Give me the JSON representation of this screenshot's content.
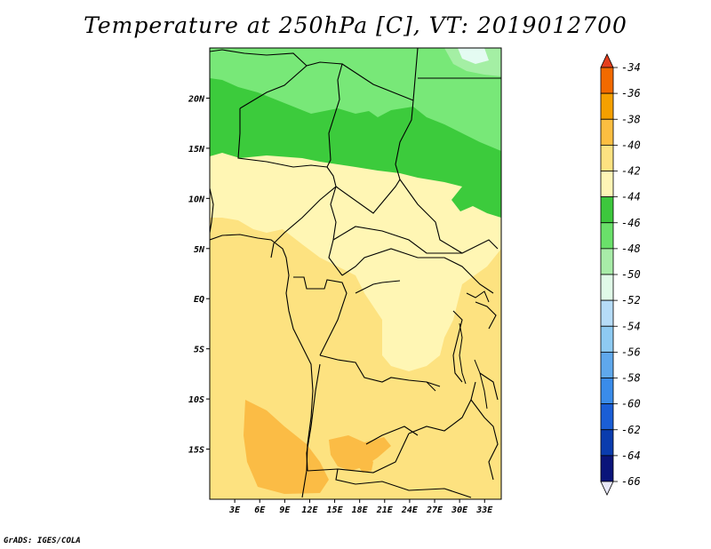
{
  "title": "Temperature at 250hPa [C], VT: 2019012700",
  "credit": "GrADS: IGES/COLA",
  "map": {
    "lat_labels": [
      "20N",
      "15N",
      "10N",
      "5N",
      "EQ",
      "5S",
      "10S",
      "15S"
    ],
    "lon_labels": [
      "3E",
      "6E",
      "9E",
      "12E",
      "15E",
      "18E",
      "21E",
      "24E",
      "27E",
      "30E",
      "33E"
    ],
    "lat_range": [
      -20,
      25
    ],
    "lon_range": [
      0,
      35
    ]
  },
  "legend": {
    "labels": [
      "-34",
      "-36",
      "-38",
      "-40",
      "-42",
      "-44",
      "-46",
      "-48",
      "-50",
      "-52",
      "-54",
      "-56",
      "-58",
      "-60",
      "-62",
      "-64",
      "-66"
    ],
    "colors": [
      "#e43e1c",
      "#f26a00",
      "#f5a000",
      "#fcbe41",
      "#fde281",
      "#fff5b6",
      "#3dc73d",
      "#6ae06a",
      "#a8eca8",
      "#e0fae8",
      "#b6dcf8",
      "#8ecaf2",
      "#5fa8ec",
      "#3a8cea",
      "#1a5ed6",
      "#0a3cae",
      "#0a147a",
      "#e8e8f8"
    ]
  },
  "colors": {
    "fill_-38": "#fbbc45",
    "fill_-40": "#fde280",
    "fill_-42": "#fff6b4",
    "fill_-44": "#3ccb3c",
    "fill_-46": "#78e878",
    "fill_-48": "#a4efa4",
    "fill_-50": "#e4fbf2"
  }
}
